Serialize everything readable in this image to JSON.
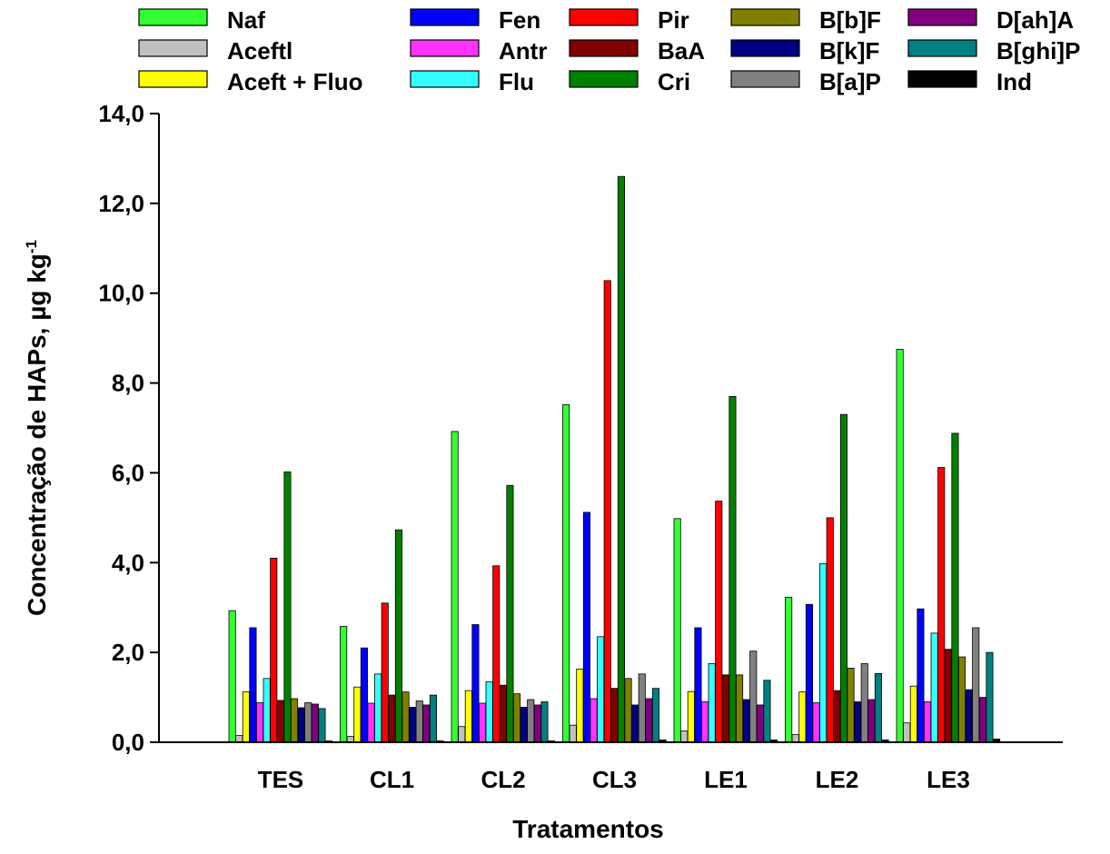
{
  "chart_data": {
    "type": "bar",
    "title": "",
    "xlabel": "Tratamentos",
    "ylabel": "Concentração de HAPs, µg kg",
    "ylabel_superscript": "-1",
    "ylim": [
      0,
      14
    ],
    "yticks": [
      "0,0",
      "2,0",
      "4,0",
      "6,0",
      "8,0",
      "10,0",
      "12,0",
      "14,0"
    ],
    "grid": false,
    "legend_position": "top",
    "categories": [
      "TES",
      "CL1",
      "CL2",
      "CL3",
      "LE1",
      "LE2",
      "LE3"
    ],
    "series": [
      {
        "name": "Naf",
        "color": "#33ff33",
        "values": [
          2.93,
          2.58,
          6.92,
          7.52,
          4.98,
          3.23,
          8.75
        ]
      },
      {
        "name": "Aceftl",
        "color": "#c0c0c0",
        "values": [
          0.15,
          0.13,
          0.35,
          0.38,
          0.25,
          0.17,
          0.43
        ]
      },
      {
        "name": "Aceft + Fluo",
        "color": "#ffff00",
        "values": [
          1.12,
          1.23,
          1.15,
          1.63,
          1.13,
          1.12,
          1.25
        ]
      },
      {
        "name": "Fen",
        "color": "#0000ff",
        "values": [
          2.55,
          2.1,
          2.62,
          5.12,
          2.55,
          3.07,
          2.97
        ]
      },
      {
        "name": "Antr",
        "color": "#ff33ff",
        "values": [
          0.88,
          0.87,
          0.87,
          0.97,
          0.9,
          0.88,
          0.9
        ]
      },
      {
        "name": "Flu",
        "color": "#33ffff",
        "values": [
          1.42,
          1.52,
          1.35,
          2.35,
          1.75,
          3.98,
          2.43
        ]
      },
      {
        "name": "Pir",
        "color": "#ff0000",
        "values": [
          4.1,
          3.1,
          3.93,
          10.28,
          5.37,
          5.0,
          6.12
        ]
      },
      {
        "name": "BaA",
        "color": "#800000",
        "values": [
          0.93,
          1.05,
          1.27,
          1.2,
          1.5,
          1.15,
          2.07
        ]
      },
      {
        "name": "Cri",
        "color": "#008000",
        "values": [
          6.02,
          4.73,
          5.72,
          12.6,
          7.7,
          7.3,
          6.88
        ]
      },
      {
        "name": "B[b]F",
        "color": "#808000",
        "values": [
          0.97,
          1.12,
          1.08,
          1.42,
          1.5,
          1.65,
          1.9
        ]
      },
      {
        "name": "B[k]F",
        "color": "#000080",
        "values": [
          0.77,
          0.78,
          0.78,
          0.83,
          0.95,
          0.9,
          1.17
        ]
      },
      {
        "name": "B[a]P",
        "color": "#808080",
        "values": [
          0.88,
          0.92,
          0.95,
          1.52,
          2.03,
          1.75,
          2.55
        ]
      },
      {
        "name": "D[ah]A",
        "color": "#800080",
        "values": [
          0.85,
          0.83,
          0.83,
          0.97,
          0.83,
          0.95,
          1.0
        ]
      },
      {
        "name": "B[ghi]P",
        "color": "#008080",
        "values": [
          0.75,
          1.05,
          0.9,
          1.2,
          1.38,
          1.53,
          2.0
        ]
      },
      {
        "name": "Ind",
        "color": "#000000",
        "values": [
          0.03,
          0.03,
          0.03,
          0.05,
          0.05,
          0.05,
          0.07
        ]
      }
    ]
  }
}
